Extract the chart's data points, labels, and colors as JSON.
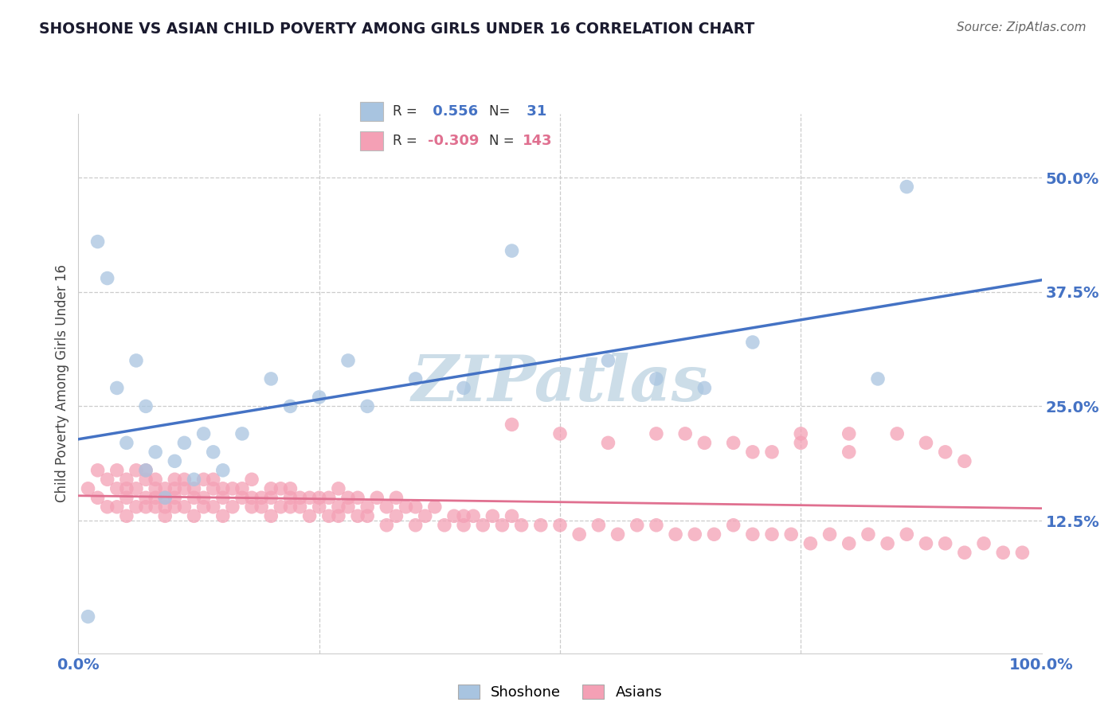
{
  "title": "SHOSHONE VS ASIAN CHILD POVERTY AMONG GIRLS UNDER 16 CORRELATION CHART",
  "source": "Source: ZipAtlas.com",
  "ylabel": "Child Poverty Among Girls Under 16",
  "xlim": [
    0,
    100
  ],
  "ylim": [
    -2,
    57
  ],
  "xticks": [
    0,
    100
  ],
  "xticklabels": [
    "0.0%",
    "100.0%"
  ],
  "yticks": [
    12.5,
    25.0,
    37.5,
    50.0
  ],
  "yticklabels": [
    "12.5%",
    "25.0%",
    "37.5%",
    "50.0%"
  ],
  "shoshone_R": 0.556,
  "shoshone_N": 31,
  "asian_R": -0.309,
  "asian_N": 143,
  "shoshone_color": "#a8c4e0",
  "asian_color": "#f4a0b5",
  "shoshone_line_color": "#4472c4",
  "asian_line_color": "#e07090",
  "watermark": "ZIPatlas",
  "watermark_color": "#ccdde8",
  "background_color": "#ffffff",
  "grid_color": "#cccccc",
  "shoshone_x": [
    1,
    2,
    3,
    4,
    5,
    6,
    7,
    7,
    8,
    9,
    10,
    11,
    12,
    13,
    14,
    15,
    17,
    20,
    22,
    25,
    28,
    30,
    35,
    40,
    45,
    55,
    60,
    65,
    70,
    83,
    86
  ],
  "shoshone_y": [
    2,
    43,
    39,
    27,
    21,
    30,
    25,
    18,
    20,
    15,
    19,
    21,
    17,
    22,
    20,
    18,
    22,
    28,
    25,
    26,
    30,
    25,
    28,
    27,
    42,
    30,
    28,
    27,
    32,
    28,
    49
  ],
  "asian_x": [
    1,
    2,
    2,
    3,
    3,
    4,
    4,
    4,
    5,
    5,
    5,
    5,
    6,
    6,
    6,
    7,
    7,
    7,
    7,
    8,
    8,
    8,
    8,
    9,
    9,
    9,
    9,
    10,
    10,
    10,
    10,
    11,
    11,
    11,
    12,
    12,
    12,
    13,
    13,
    13,
    14,
    14,
    14,
    15,
    15,
    15,
    16,
    16,
    17,
    17,
    18,
    18,
    18,
    19,
    19,
    20,
    20,
    20,
    21,
    21,
    22,
    22,
    22,
    23,
    23,
    24,
    24,
    25,
    25,
    26,
    26,
    27,
    27,
    27,
    28,
    28,
    29,
    29,
    30,
    30,
    31,
    32,
    32,
    33,
    33,
    34,
    35,
    35,
    36,
    37,
    38,
    39,
    40,
    40,
    41,
    42,
    43,
    44,
    45,
    46,
    48,
    50,
    52,
    54,
    56,
    58,
    60,
    62,
    64,
    66,
    68,
    70,
    72,
    74,
    76,
    78,
    80,
    82,
    84,
    86,
    88,
    90,
    92,
    94,
    96,
    98,
    85,
    88,
    90,
    92,
    63,
    68,
    72,
    75,
    80,
    45,
    50,
    55,
    60,
    65,
    70,
    75,
    80
  ],
  "asian_y": [
    16,
    18,
    15,
    17,
    14,
    16,
    14,
    18,
    17,
    15,
    13,
    16,
    18,
    14,
    16,
    17,
    15,
    18,
    14,
    16,
    14,
    17,
    15,
    16,
    14,
    13,
    15,
    16,
    14,
    17,
    15,
    16,
    14,
    17,
    16,
    15,
    13,
    17,
    15,
    14,
    16,
    14,
    17,
    16,
    15,
    13,
    16,
    14,
    15,
    16,
    17,
    14,
    15,
    15,
    14,
    16,
    15,
    13,
    14,
    16,
    15,
    14,
    16,
    15,
    14,
    15,
    13,
    15,
    14,
    15,
    13,
    16,
    14,
    13,
    15,
    14,
    15,
    13,
    14,
    13,
    15,
    14,
    12,
    15,
    13,
    14,
    14,
    12,
    13,
    14,
    12,
    13,
    13,
    12,
    13,
    12,
    13,
    12,
    13,
    12,
    12,
    12,
    11,
    12,
    11,
    12,
    12,
    11,
    11,
    11,
    12,
    11,
    11,
    11,
    10,
    11,
    10,
    11,
    10,
    11,
    10,
    10,
    9,
    10,
    9,
    9,
    22,
    21,
    20,
    19,
    22,
    21,
    20,
    22,
    20,
    23,
    22,
    21,
    22,
    21,
    20,
    21,
    22
  ]
}
